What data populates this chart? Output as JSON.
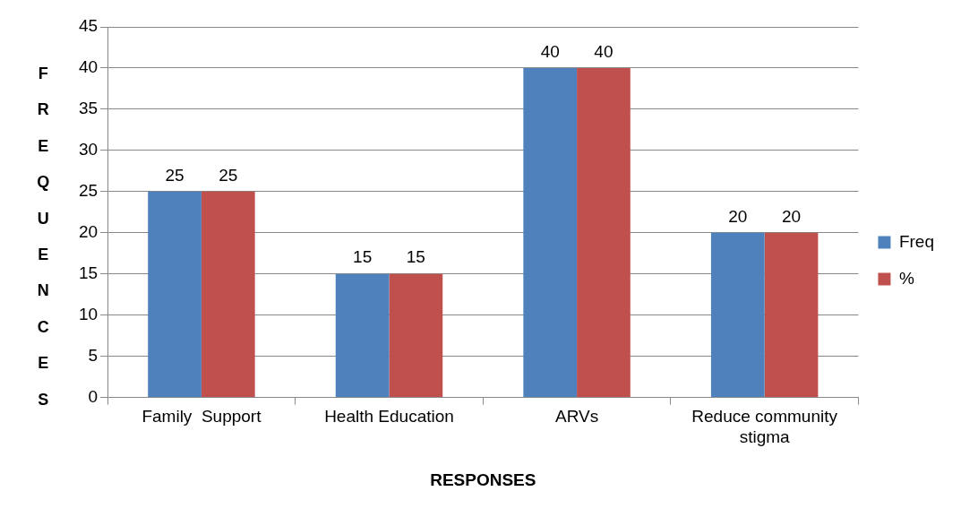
{
  "chart_data": {
    "type": "bar",
    "xlabel": "RESPONSES",
    "ylabel": "FREQUENCES",
    "categories": [
      "Family  Support",
      "Health Education",
      "ARVs",
      "Reduce community stigma"
    ],
    "series": [
      {
        "name": "Freq",
        "color": "#4f81bd",
        "values": [
          25,
          15,
          40,
          20
        ]
      },
      {
        "name": "%",
        "color": "#c0504d",
        "values": [
          25,
          15,
          40,
          20
        ]
      }
    ],
    "ylim": [
      0,
      45
    ],
    "yticks": [
      0,
      5,
      10,
      15,
      20,
      25,
      30,
      35,
      40,
      45
    ],
    "grid": "y",
    "legend": "right",
    "data_labels": true
  }
}
